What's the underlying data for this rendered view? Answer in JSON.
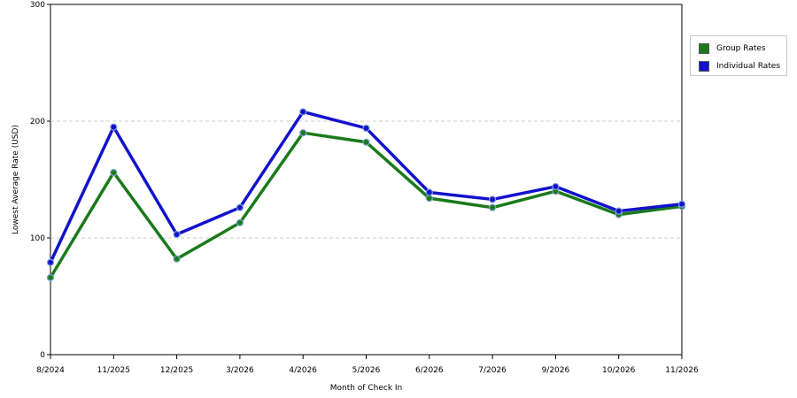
{
  "chart_data": {
    "type": "line",
    "title": "",
    "xlabel": "Month of Check In",
    "ylabel": "Lowest Average Rate (USD)",
    "categories": [
      "8/2024",
      "11/2025",
      "12/2025",
      "3/2026",
      "4/2026",
      "5/2026",
      "6/2026",
      "7/2026",
      "9/2026",
      "10/2026",
      "11/2026"
    ],
    "ylim": [
      0,
      300
    ],
    "yticks": [
      0,
      100,
      200,
      300
    ],
    "grid": true,
    "legend_position": "right",
    "series": [
      {
        "name": "Group Rates",
        "color": "#1a7a1a",
        "values": [
          66,
          156,
          82,
          113,
          190,
          182,
          134,
          126,
          140,
          120,
          127
        ]
      },
      {
        "name": "Individual Rates",
        "color": "#1212cc",
        "values": [
          79,
          195,
          103,
          126,
          208,
          194,
          139,
          133,
          144,
          123,
          129
        ]
      }
    ]
  }
}
